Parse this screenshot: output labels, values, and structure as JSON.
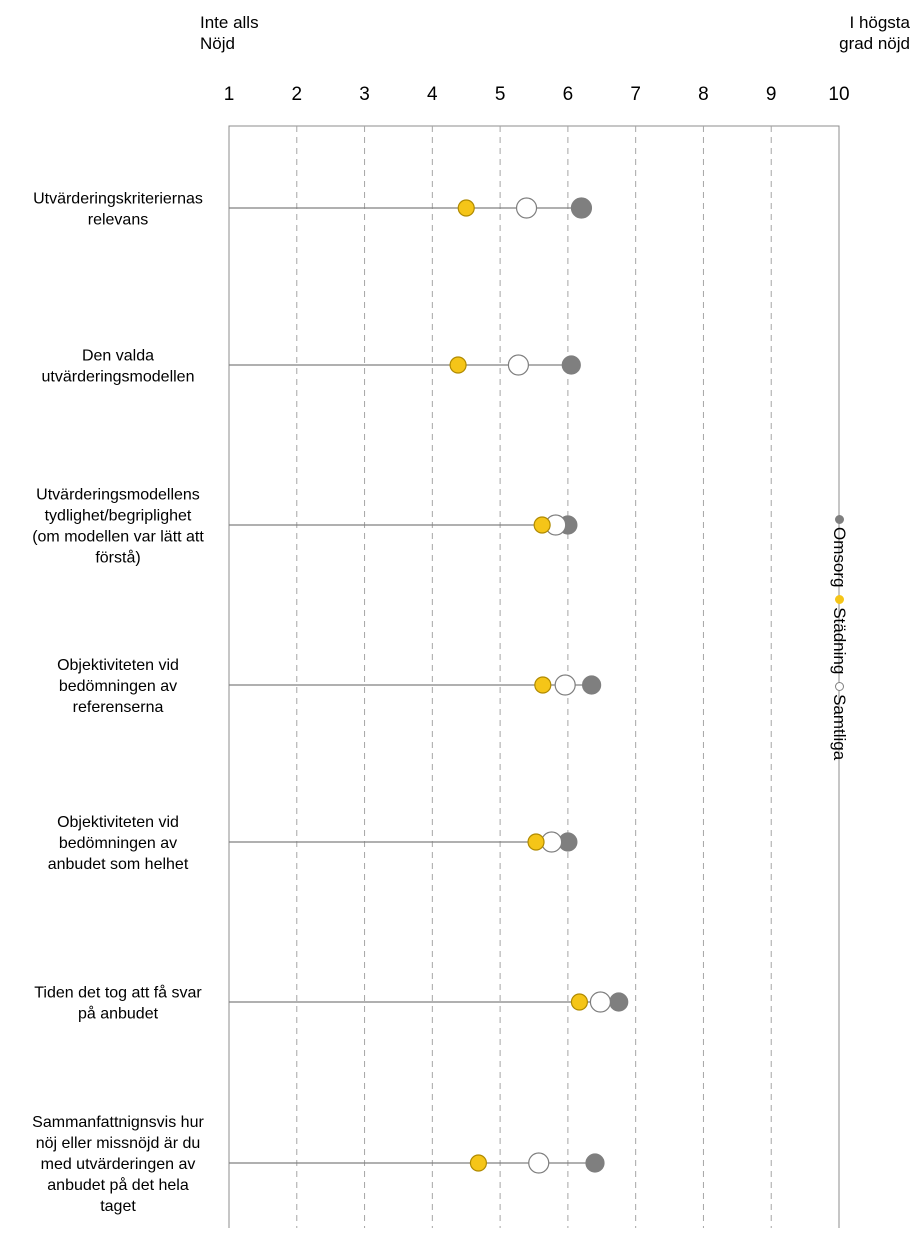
{
  "header": {
    "left_line1": "Inte alls",
    "left_line2": "Nöjd",
    "right_line1": "I högsta",
    "right_line2": "grad nöjd"
  },
  "legend": [
    {
      "name": "Omsorg",
      "color": "#7f7f7f"
    },
    {
      "name": "Städning",
      "color": "#f5c518"
    },
    {
      "name": "Samtliga",
      "color": "#ffffff"
    }
  ],
  "chart_data": {
    "type": "dot",
    "xticks": [
      "1",
      "2",
      "3",
      "4",
      "5",
      "6",
      "7",
      "8",
      "9",
      "10"
    ],
    "xlim": [
      1,
      10
    ],
    "categories": [
      "Utvärderingskriteriernas\nrelevans",
      "Den valda\nutvärderingsmodellen",
      "Utvärderingsmodellens\ntydlighet/begriplighet\n(om modellen var lätt att\nförstå)",
      "Objektiviteten vid\nbedömningen av\nreferenserna",
      "Objektiviteten vid\nbedömningen av\nanbudet som helhet",
      "Tiden det tog att få svar\npå anbudet",
      "Sammanfattnignsvis hur\nnöj eller missnöjd är du\nmed utvärderingen av\nanbudet på det hela\ntaget"
    ],
    "series": [
      {
        "name": "Omsorg",
        "color": "#7f7f7f",
        "values": [
          6.2,
          6.05,
          6.0,
          6.35,
          6.0,
          6.75,
          6.4
        ]
      },
      {
        "name": "Städning",
        "color": "#f5c518",
        "values": [
          4.5,
          4.38,
          5.62,
          5.63,
          5.53,
          6.17,
          4.68
        ]
      },
      {
        "name": "Samtliga",
        "color": "#ffffff",
        "values": [
          5.39,
          5.27,
          5.82,
          5.96,
          5.76,
          6.48,
          5.57
        ]
      }
    ],
    "grid": "vertical dashed"
  }
}
